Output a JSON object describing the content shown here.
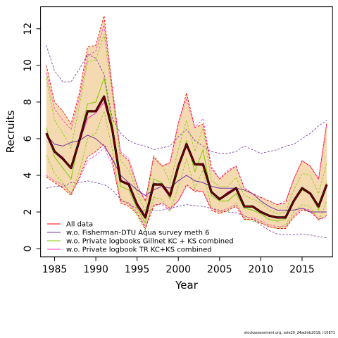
{
  "chart_data": {
    "type": "line",
    "xlabel": "Year",
    "ylabel": "Recruits",
    "xlim": [
      1983.3,
      2018.7
    ],
    "ylim": [
      -0.45,
      13.2
    ],
    "xticks": [
      1985,
      1990,
      1995,
      2000,
      2005,
      2010,
      2015
    ],
    "yticks": [
      0,
      2,
      4,
      6,
      8,
      10,
      12
    ],
    "x": [
      1984,
      1985,
      1986,
      1987,
      1988,
      1989,
      1990,
      1991,
      1992,
      1993,
      1994,
      1995,
      1996,
      1997,
      1998,
      1999,
      2000,
      2001,
      2002,
      2003,
      2004,
      2005,
      2006,
      2007,
      2008,
      2009,
      2010,
      2011,
      2012,
      2013,
      2014,
      2015,
      2016,
      2017,
      2018
    ],
    "band": {
      "lower": [
        3.9,
        3.6,
        3.3,
        2.9,
        3.9,
        5.0,
        5.3,
        5.7,
        4.8,
        2.5,
        2.3,
        1.9,
        1.1,
        2.3,
        2.5,
        2.2,
        2.6,
        3.5,
        3.1,
        3.1,
        2.1,
        1.9,
        2.1,
        2.3,
        1.6,
        1.6,
        1.4,
        1.2,
        1.1,
        1.1,
        1.7,
        2.1,
        2.0,
        1.6,
        1.8
      ],
      "upper": [
        10.0,
        8.0,
        7.5,
        6.8,
        8.5,
        11.0,
        11.1,
        12.7,
        8.8,
        5.2,
        4.8,
        3.4,
        2.6,
        5.0,
        4.5,
        4.7,
        6.8,
        8.5,
        6.6,
        6.8,
        4.4,
        3.8,
        4.2,
        4.5,
        3.3,
        3.0,
        2.8,
        2.6,
        2.4,
        2.5,
        3.8,
        4.8,
        4.5,
        3.8,
        6.9
      ]
    },
    "legend_position": "bottom-left",
    "series": [
      {
        "name": "All data",
        "color": "#ff0000",
        "values": [
          6.3,
          5.3,
          4.9,
          4.4,
          5.9,
          7.5,
          7.5,
          8.3,
          6.5,
          3.7,
          3.5,
          2.4,
          1.7,
          3.5,
          3.5,
          2.9,
          4.5,
          5.7,
          4.6,
          4.6,
          3.1,
          2.7,
          3.0,
          3.3,
          2.3,
          2.3,
          2.0,
          1.8,
          1.7,
          1.7,
          2.6,
          3.3,
          3.0,
          2.3,
          3.5
        ]
      },
      {
        "name": "w.o. Fisherman-DTU Aqua survey meth 6",
        "color": "#7030a0",
        "values": [
          6.2,
          5.7,
          5.6,
          5.8,
          5.9,
          6.2,
          6.0,
          5.6,
          4.9,
          4.0,
          3.6,
          3.2,
          2.9,
          3.2,
          3.4,
          3.3,
          3.7,
          4.0,
          3.7,
          3.6,
          3.4,
          3.3,
          3.3,
          3.3,
          3.2,
          3.0,
          2.6,
          2.3,
          2.1,
          2.1,
          2.1,
          2.2,
          2.0,
          2.0,
          2.0
        ]
      },
      {
        "name": "w.o. Private logbooks Gillnet KC + KS combined",
        "color": "#80cc00",
        "values": [
          6.6,
          5.0,
          4.4,
          3.8,
          6.0,
          7.9,
          8.0,
          9.3,
          6.8,
          3.4,
          3.2,
          2.2,
          1.4,
          3.8,
          3.6,
          2.7,
          4.3,
          5.9,
          4.2,
          5.4,
          2.9,
          2.6,
          2.6,
          3.0,
          2.2,
          2.1,
          1.9,
          1.6,
          1.5,
          1.6,
          2.6,
          3.2,
          3.0,
          2.1,
          3.6
        ]
      },
      {
        "name": "w.o. Private logbook TR KC+KS combined",
        "color": "#ff30c8",
        "values": [
          6.2,
          5.3,
          5.0,
          4.4,
          5.8,
          7.1,
          7.4,
          8.0,
          6.4,
          3.7,
          3.6,
          2.5,
          1.8,
          3.6,
          3.4,
          2.8,
          4.4,
          5.6,
          4.6,
          4.5,
          3.1,
          2.7,
          3.1,
          3.3,
          2.3,
          2.3,
          2.0,
          1.8,
          1.7,
          1.7,
          2.6,
          3.3,
          3.0,
          2.3,
          3.5
        ]
      }
    ],
    "dashed_series": [
      {
        "color": "#7030a0",
        "lower": [
          3.3,
          3.4,
          3.4,
          3.6,
          3.6,
          3.7,
          3.6,
          3.5,
          3.2,
          2.7,
          2.4,
          2.2,
          2.0,
          2.1,
          2.1,
          2.2,
          2.3,
          2.4,
          2.35,
          2.3,
          2.2,
          2.1,
          2.0,
          1.95,
          1.8,
          1.6,
          1.3,
          1.0,
          0.8,
          0.75,
          0.75,
          0.8,
          0.75,
          0.65,
          0.6
        ],
        "upper": [
          11.1,
          9.7,
          9.1,
          9.1,
          9.8,
          10.6,
          10.4,
          9.5,
          7.1,
          6.3,
          5.9,
          5.7,
          5.6,
          5.4,
          5.5,
          5.6,
          6.1,
          6.5,
          5.9,
          5.6,
          5.3,
          5.2,
          5.2,
          5.3,
          5.6,
          5.4,
          5.2,
          5.3,
          5.4,
          5.6,
          5.7,
          6.0,
          6.3,
          6.7,
          7.0
        ]
      },
      {
        "color": "#80cc00",
        "lower": [
          5.1,
          4.1,
          3.6,
          3.0,
          4.2,
          6.0,
          6.3,
          7.5,
          5.4,
          2.6,
          2.5,
          1.8,
          1.0,
          2.8,
          2.7,
          2.0,
          3.4,
          4.9,
          3.3,
          4.3,
          2.2,
          2.0,
          2.0,
          2.5,
          1.6,
          1.5,
          1.4,
          1.2,
          1.1,
          1.3,
          2.0,
          2.4,
          2.3,
          1.5,
          2.6
        ],
        "upper": [
          9.3,
          7.0,
          6.3,
          5.5,
          7.8,
          10.2,
          10.3,
          11.7,
          8.4,
          4.8,
          4.3,
          3.1,
          2.0,
          5.1,
          4.6,
          3.6,
          5.4,
          7.0,
          5.3,
          6.6,
          3.7,
          3.4,
          3.4,
          3.9,
          2.9,
          2.7,
          2.5,
          2.1,
          1.9,
          2.0,
          3.2,
          4.1,
          4.0,
          3.0,
          4.7
        ]
      },
      {
        "color": "#ff30c8",
        "lower": [
          4.0,
          3.7,
          3.5,
          3.0,
          3.8,
          4.8,
          5.1,
          5.5,
          4.6,
          2.6,
          2.5,
          2.0,
          1.2,
          2.4,
          2.4,
          2.1,
          2.6,
          3.4,
          3.2,
          3.1,
          2.2,
          2.0,
          2.2,
          2.4,
          1.7,
          1.7,
          1.5,
          1.3,
          1.2,
          1.2,
          1.8,
          2.2,
          2.1,
          1.6,
          1.7
        ],
        "upper": [
          9.6,
          7.6,
          7.0,
          6.5,
          8.2,
          10.5,
          10.8,
          12.2,
          8.6,
          5.3,
          4.9,
          3.5,
          2.6,
          5.0,
          4.5,
          4.7,
          6.9,
          8.2,
          6.6,
          7.1,
          4.5,
          3.8,
          4.3,
          4.5,
          3.3,
          3.0,
          2.8,
          2.6,
          2.4,
          2.6,
          3.8,
          4.8,
          4.5,
          3.8,
          6.8
        ]
      }
    ],
    "footer": "stockassessment.org, sole20_24admb2019, r10871"
  }
}
